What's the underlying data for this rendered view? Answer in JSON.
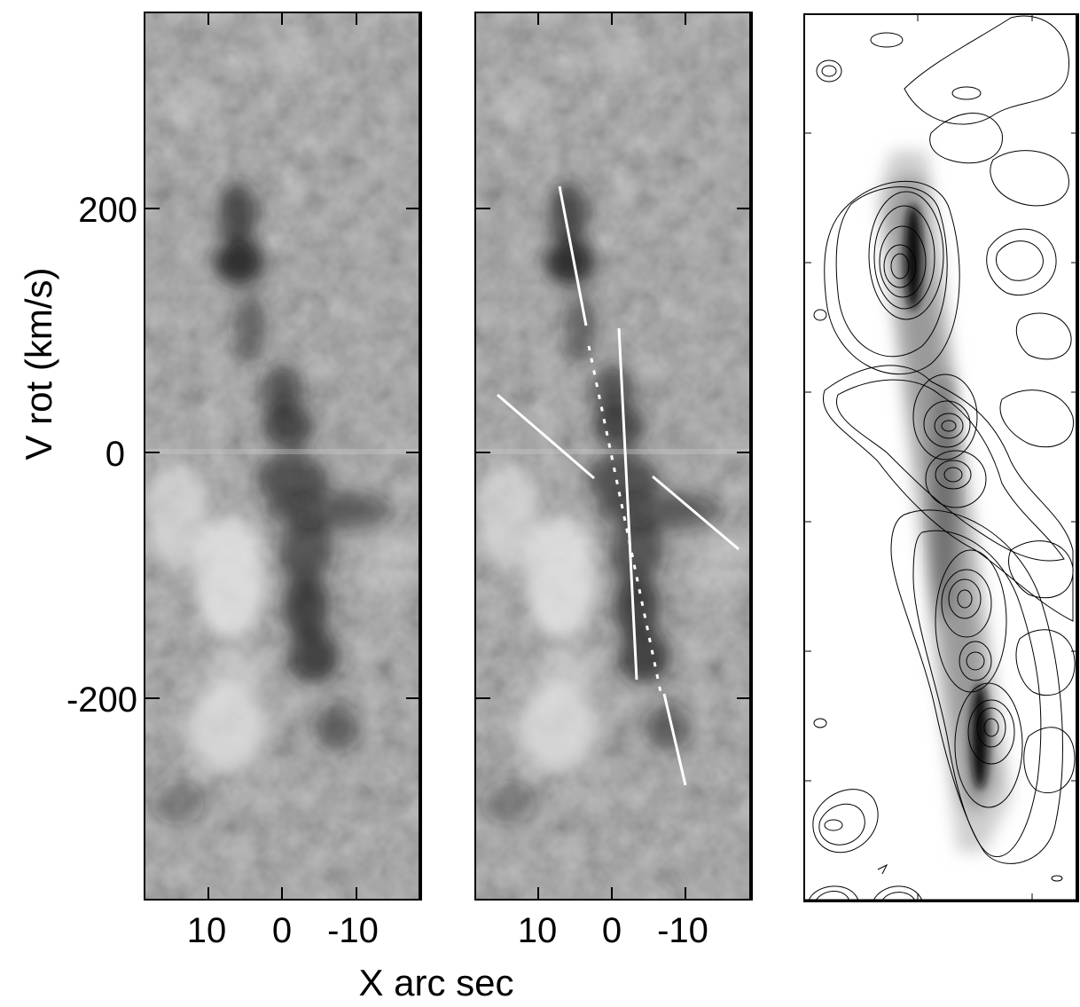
{
  "figure": {
    "y_axis_label": "V rot (km/s)",
    "x_axis_label": "X arc sec",
    "y_tick_labels": [
      "200",
      "0",
      "-200"
    ],
    "x_tick_labels": [
      "10",
      "0",
      "-10"
    ]
  },
  "panels": [
    {
      "name": "pv-diagram-raw"
    },
    {
      "name": "pv-diagram-annotated"
    },
    {
      "name": "pv-model-contours"
    }
  ],
  "colors": {
    "background": "#ffffff",
    "frame": "#000000",
    "annotation": "#ffffff",
    "gray_base": "#8c8c8c"
  }
}
